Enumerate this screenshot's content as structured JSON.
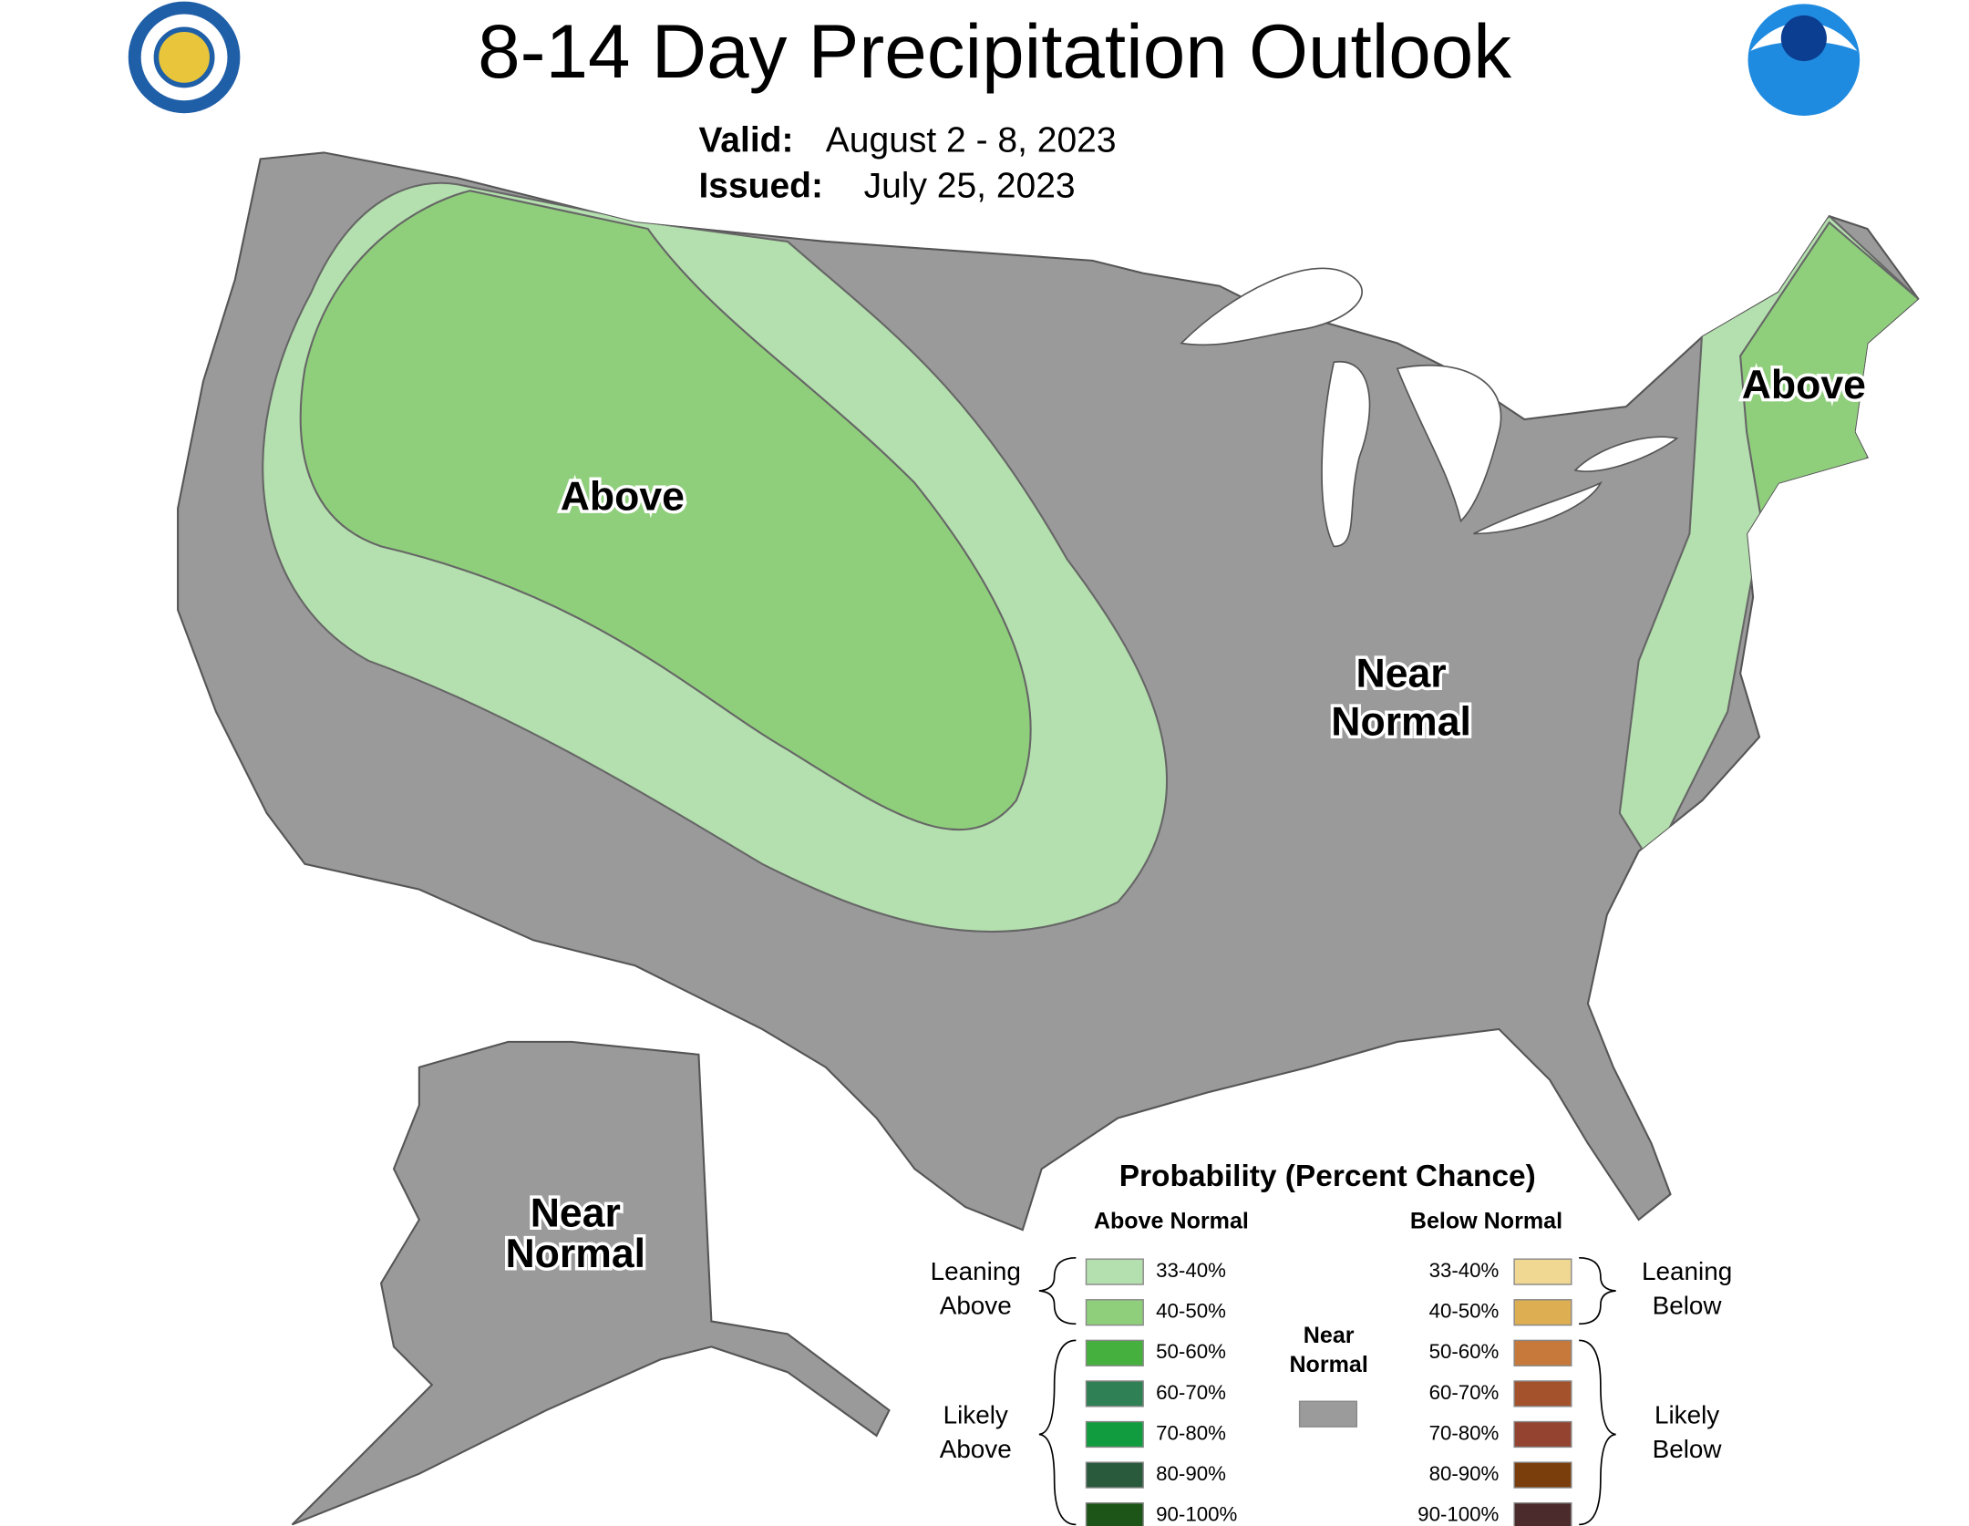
{
  "header": {
    "title": "8-14 Day Precipitation Outlook",
    "valid_label": "Valid:",
    "valid": "August 2 - 8, 2023",
    "issued_label": "Issued:",
    "issued": "July 25, 2023"
  },
  "map_labels": [
    [
      "Above"
    ],
    [
      "Above"
    ],
    [
      "Near",
      "Normal"
    ],
    [
      "Near",
      "Normal"
    ]
  ],
  "legend": {
    "title": "Probability (Percent Chance)",
    "above_heading": "Above Normal",
    "below_heading": "Below Normal",
    "near_normal": {
      "lines": [
        "Near",
        "Normal"
      ],
      "color": "#9b9b9b"
    },
    "above": [
      {
        "label": "33-40%",
        "color": "#b4dfae"
      },
      {
        "label": "40-50%",
        "color": "#8fcf7c"
      },
      {
        "label": "50-60%",
        "color": "#45b03d"
      },
      {
        "label": "60-70%",
        "color": "#2f8055"
      },
      {
        "label": "70-80%",
        "color": "#119d3f"
      },
      {
        "label": "80-90%",
        "color": "#2a5a3c"
      },
      {
        "label": "90-100%",
        "color": "#1d5519"
      }
    ],
    "below": [
      {
        "label": "33-40%",
        "color": "#f0d893"
      },
      {
        "label": "40-50%",
        "color": "#ddae52"
      },
      {
        "label": "50-60%",
        "color": "#c6793a"
      },
      {
        "label": "60-70%",
        "color": "#a4522b"
      },
      {
        "label": "70-80%",
        "color": "#93432f"
      },
      {
        "label": "80-90%",
        "color": "#7a3d0c"
      },
      {
        "label": "90-100%",
        "color": "#4b2b2b"
      }
    ],
    "brackets": {
      "leaning_above": [
        "Leaning",
        "Above"
      ],
      "likely_above": [
        "Likely",
        "Above"
      ],
      "leaning_below": [
        "Leaning",
        "Below"
      ],
      "likely_below": [
        "Likely",
        "Below"
      ]
    }
  }
}
